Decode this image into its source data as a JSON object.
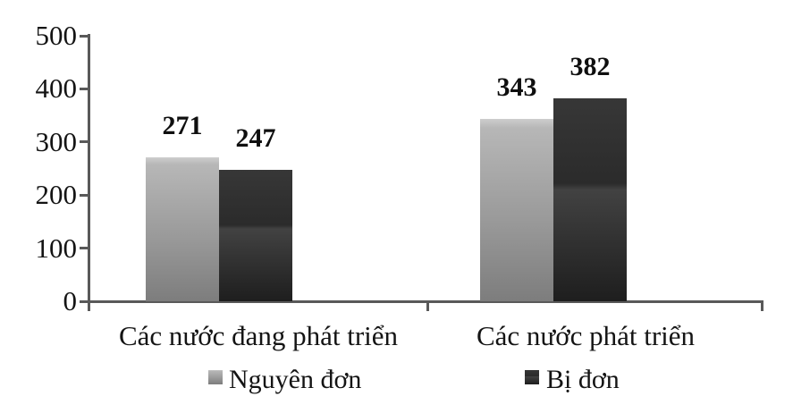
{
  "chart_data": {
    "type": "bar",
    "categories": [
      "Các nước đang phát triển",
      "Các nước phát triển"
    ],
    "series": [
      {
        "name": "Nguyên đơn",
        "values": [
          271,
          343
        ],
        "color": "#a9a9a9",
        "gradient_stops": [
          [
            "#cdcdcd",
            0
          ],
          [
            "#b7b7b7",
            5
          ],
          [
            "#9a9a9a",
            55
          ],
          [
            "#7d7d7d",
            100
          ]
        ]
      },
      {
        "name": "Bị đơn",
        "values": [
          247,
          382
        ],
        "color": "#2e2e2e",
        "gradient_stops": [
          [
            "#373737",
            0
          ],
          [
            "#2b2b2b",
            42
          ],
          [
            "#424242",
            45
          ],
          [
            "#343434",
            66
          ],
          [
            "#1e1e1e",
            100
          ]
        ]
      }
    ],
    "yticks": [
      0,
      100,
      200,
      300,
      400,
      500
    ],
    "ylim": [
      0,
      500
    ],
    "xlabel": "",
    "ylabel": "",
    "title": "",
    "grid": false,
    "legend_position": "bottom",
    "value_labels_shown": true
  },
  "colors": {
    "axis": "#595959",
    "text": "#141414",
    "background": "#ffffff"
  }
}
